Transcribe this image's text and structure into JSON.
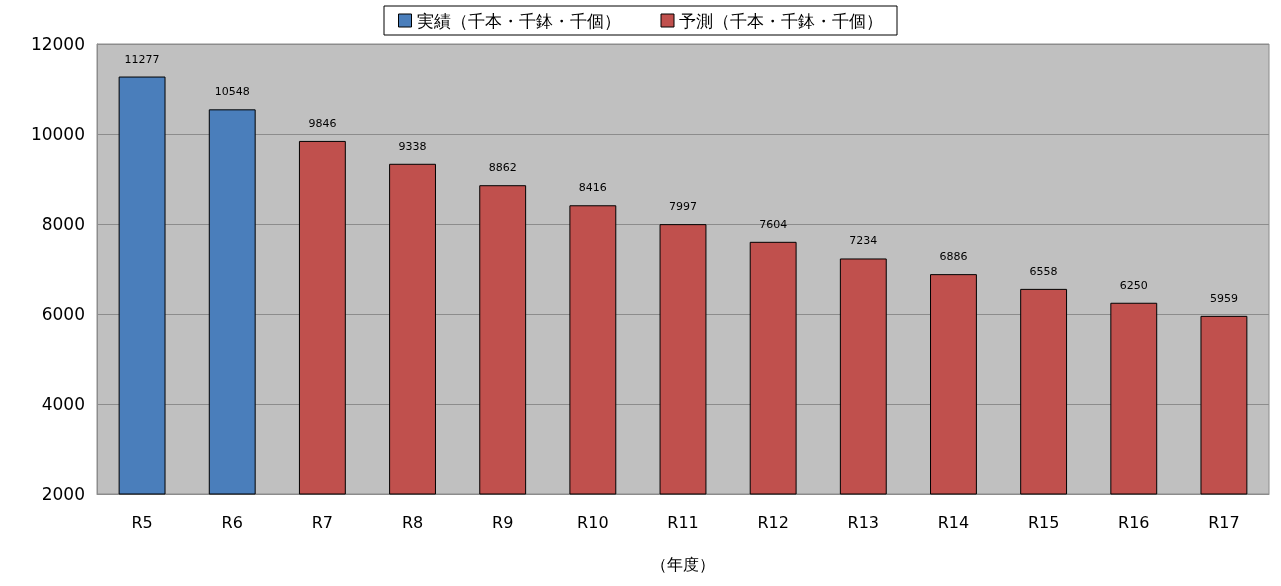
{
  "chart_data": {
    "type": "bar",
    "xlabel": "（年度）",
    "categories": [
      "R5",
      "R6",
      "R7",
      "R8",
      "R9",
      "R10",
      "R11",
      "R12",
      "R13",
      "R14",
      "R15",
      "R16",
      "R17"
    ],
    "series": [
      {
        "name": "実績（千本・千鉢・千個）",
        "color": "#4a7ebb",
        "values": [
          11277,
          10548,
          null,
          null,
          null,
          null,
          null,
          null,
          null,
          null,
          null,
          null,
          null
        ]
      },
      {
        "name": "予測（千本・千鉢・千個）",
        "color": "#c0504d",
        "values": [
          null,
          null,
          9846,
          9338,
          8862,
          8416,
          7997,
          7604,
          7234,
          6886,
          6558,
          6250,
          5959
        ]
      }
    ],
    "ylim": [
      2000,
      12000
    ],
    "yticks": [
      2000,
      4000,
      6000,
      8000,
      10000,
      12000
    ],
    "grid": "y",
    "legend": "top",
    "data_labels": true
  }
}
